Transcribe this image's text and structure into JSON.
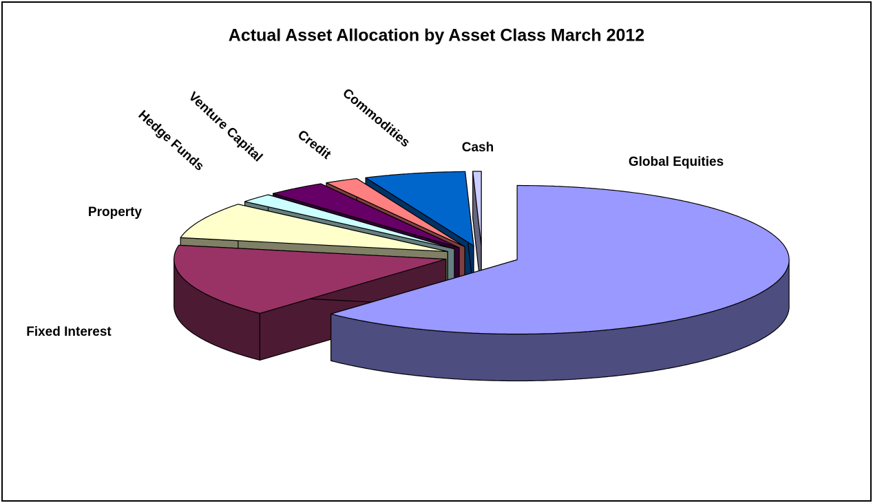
{
  "chart_data": {
    "type": "pie3d",
    "title": "Actual Asset Allocation by Asset Class March 2012",
    "categories": [
      "Global Equities",
      "Fixed Interest",
      "Property",
      "Hedge Funds",
      "Venture Capital",
      "Credit",
      "Commodities",
      "Cash"
    ],
    "values": [
      62,
      16,
      8,
      2,
      3.5,
      2,
      6,
      0.5
    ],
    "colors": [
      "#9999ff",
      "#993366",
      "#ffffcc",
      "#ccffff",
      "#660066",
      "#ff8080",
      "#0066cc",
      "#ccccff"
    ]
  }
}
